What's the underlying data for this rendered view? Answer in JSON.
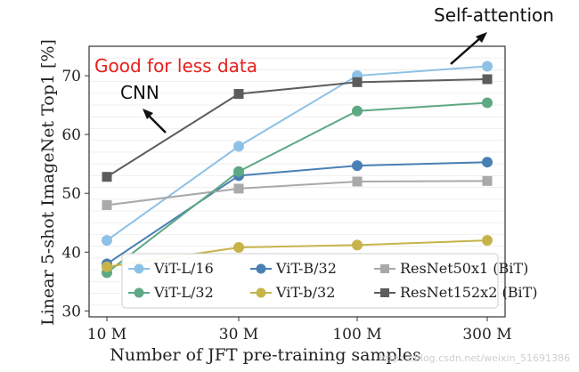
{
  "chart_data": {
    "type": "line",
    "title": "",
    "xlabel": "Number of JFT pre-training samples",
    "ylabel": "Linear 5-shot ImageNet Top1 [%]",
    "categories": [
      "10 M",
      "30 M",
      "100 M",
      "300 M"
    ],
    "yticks": [
      30,
      40,
      50,
      60,
      70
    ],
    "ylim": [
      29,
      75
    ],
    "grid": "horizontal",
    "legend_position": "lower-center",
    "series": [
      {
        "name": "ViT-L/16",
        "color": "#8dc1e6",
        "marker": "circle",
        "values": [
          42,
          58,
          70,
          71.6
        ]
      },
      {
        "name": "ViT-B/32",
        "color": "#4a7fb4",
        "marker": "circle",
        "values": [
          38,
          53,
          54.7,
          55.3
        ]
      },
      {
        "name": "ResNet50x1 (BiT)",
        "color": "#a9a9a9",
        "marker": "square",
        "values": [
          48,
          50.8,
          52,
          52.1
        ]
      },
      {
        "name": "ViT-L/32",
        "color": "#5ea883",
        "marker": "circle",
        "values": [
          36.5,
          53.7,
          64,
          65.4
        ]
      },
      {
        "name": "ViT-b/32",
        "color": "#c6b44a",
        "marker": "circle",
        "values": [
          37.5,
          40.8,
          41.2,
          42
        ]
      },
      {
        "name": "ResNet152x2 (BiT)",
        "color": "#5c5c5c",
        "marker": "square",
        "values": [
          52.8,
          66.9,
          68.9,
          69.4
        ]
      }
    ]
  },
  "annotations": {
    "good_for_less_data": "Good for less data",
    "cnn": "CNN",
    "self_attention": "Self-attention"
  },
  "watermark": "https://blog.csdn.net/weixin_51691386"
}
